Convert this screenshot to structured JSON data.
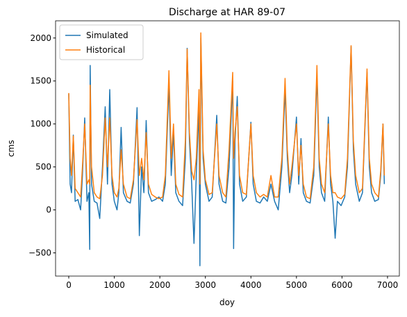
{
  "chart_data": {
    "type": "line",
    "title": "Discharge at HAR 89-07",
    "xlabel": "doy",
    "ylabel": "cms",
    "x": [
      0,
      30,
      60,
      100,
      140,
      200,
      260,
      300,
      350,
      400,
      440,
      460,
      470,
      500,
      560,
      620,
      680,
      740,
      800,
      850,
      900,
      950,
      1000,
      1060,
      1100,
      1150,
      1200,
      1280,
      1350,
      1420,
      1500,
      1550,
      1600,
      1650,
      1700,
      1750,
      1820,
      1900,
      1980,
      2060,
      2120,
      2200,
      2250,
      2300,
      2350,
      2420,
      2500,
      2560,
      2600,
      2650,
      2700,
      2750,
      2800,
      2860,
      2880,
      2900,
      2950,
      3000,
      3080,
      3150,
      3250,
      3300,
      3380,
      3450,
      3520,
      3600,
      3620,
      3650,
      3700,
      3750,
      3820,
      3900,
      4000,
      4050,
      4120,
      4200,
      4280,
      4360,
      4440,
      4520,
      4600,
      4680,
      4750,
      4800,
      4850,
      4900,
      5000,
      5050,
      5100,
      5150,
      5220,
      5300,
      5380,
      5450,
      5500,
      5550,
      5620,
      5700,
      5750,
      5800,
      5850,
      5900,
      5980,
      6060,
      6120,
      6200,
      6250,
      6300,
      6380,
      6450,
      6550,
      6600,
      6650,
      6720,
      6800,
      6850,
      6900,
      6930
    ],
    "series": [
      {
        "name": "Simulated",
        "color": "#1f77b4",
        "values": [
          1350,
          300,
          200,
          870,
          100,
          120,
          0,
          400,
          1070,
          100,
          200,
          -460,
          1680,
          300,
          100,
          80,
          -100,
          500,
          1200,
          300,
          1400,
          300,
          100,
          0,
          200,
          960,
          200,
          100,
          80,
          300,
          1190,
          -300,
          500,
          200,
          1040,
          200,
          100,
          120,
          150,
          100,
          300,
          1460,
          400,
          900,
          200,
          100,
          50,
          600,
          1880,
          800,
          300,
          -390,
          400,
          1200,
          -650,
          2000,
          600,
          300,
          100,
          150,
          1100,
          300,
          100,
          80,
          500,
          1500,
          -450,
          800,
          1320,
          300,
          100,
          150,
          1020,
          300,
          100,
          80,
          150,
          100,
          300,
          100,
          0,
          500,
          1400,
          600,
          200,
          400,
          1080,
          300,
          830,
          200,
          100,
          80,
          400,
          1570,
          500,
          200,
          100,
          1080,
          300,
          100,
          -330,
          100,
          50,
          150,
          500,
          1900,
          700,
          300,
          100,
          200,
          1600,
          500,
          200,
          100,
          120,
          400,
          1000,
          300
        ]
      },
      {
        "name": "Historical",
        "color": "#ff7f0e",
        "values": [
          1360,
          600,
          400,
          860,
          250,
          200,
          150,
          500,
          1000,
          300,
          350,
          300,
          1450,
          500,
          200,
          150,
          130,
          400,
          1070,
          500,
          1070,
          400,
          200,
          150,
          250,
          700,
          300,
          150,
          130,
          350,
          1050,
          400,
          600,
          350,
          900,
          300,
          180,
          150,
          130,
          150,
          400,
          1620,
          600,
          1000,
          300,
          180,
          150,
          800,
          1870,
          900,
          450,
          350,
          600,
          1400,
          300,
          2060,
          700,
          350,
          180,
          200,
          1000,
          400,
          200,
          150,
          700,
          1600,
          600,
          900,
          1200,
          400,
          200,
          180,
          1000,
          400,
          200,
          150,
          180,
          150,
          400,
          150,
          150,
          600,
          1530,
          700,
          300,
          500,
          1000,
          400,
          750,
          300,
          150,
          130,
          500,
          1680,
          600,
          300,
          200,
          1000,
          400,
          200,
          200,
          150,
          130,
          180,
          600,
          1910,
          800,
          400,
          200,
          250,
          1640,
          600,
          300,
          200,
          150,
          450,
          1000,
          400
        ]
      }
    ],
    "xlim": [
      -290,
      7260
    ],
    "ylim": [
      -770,
      2200
    ],
    "xticks": [
      0,
      1000,
      2000,
      3000,
      4000,
      5000,
      6000,
      7000
    ],
    "yticks": [
      {
        "value": -500,
        "label": "−500"
      },
      0,
      500,
      1000,
      1500,
      2000
    ],
    "legend": "upper left"
  }
}
